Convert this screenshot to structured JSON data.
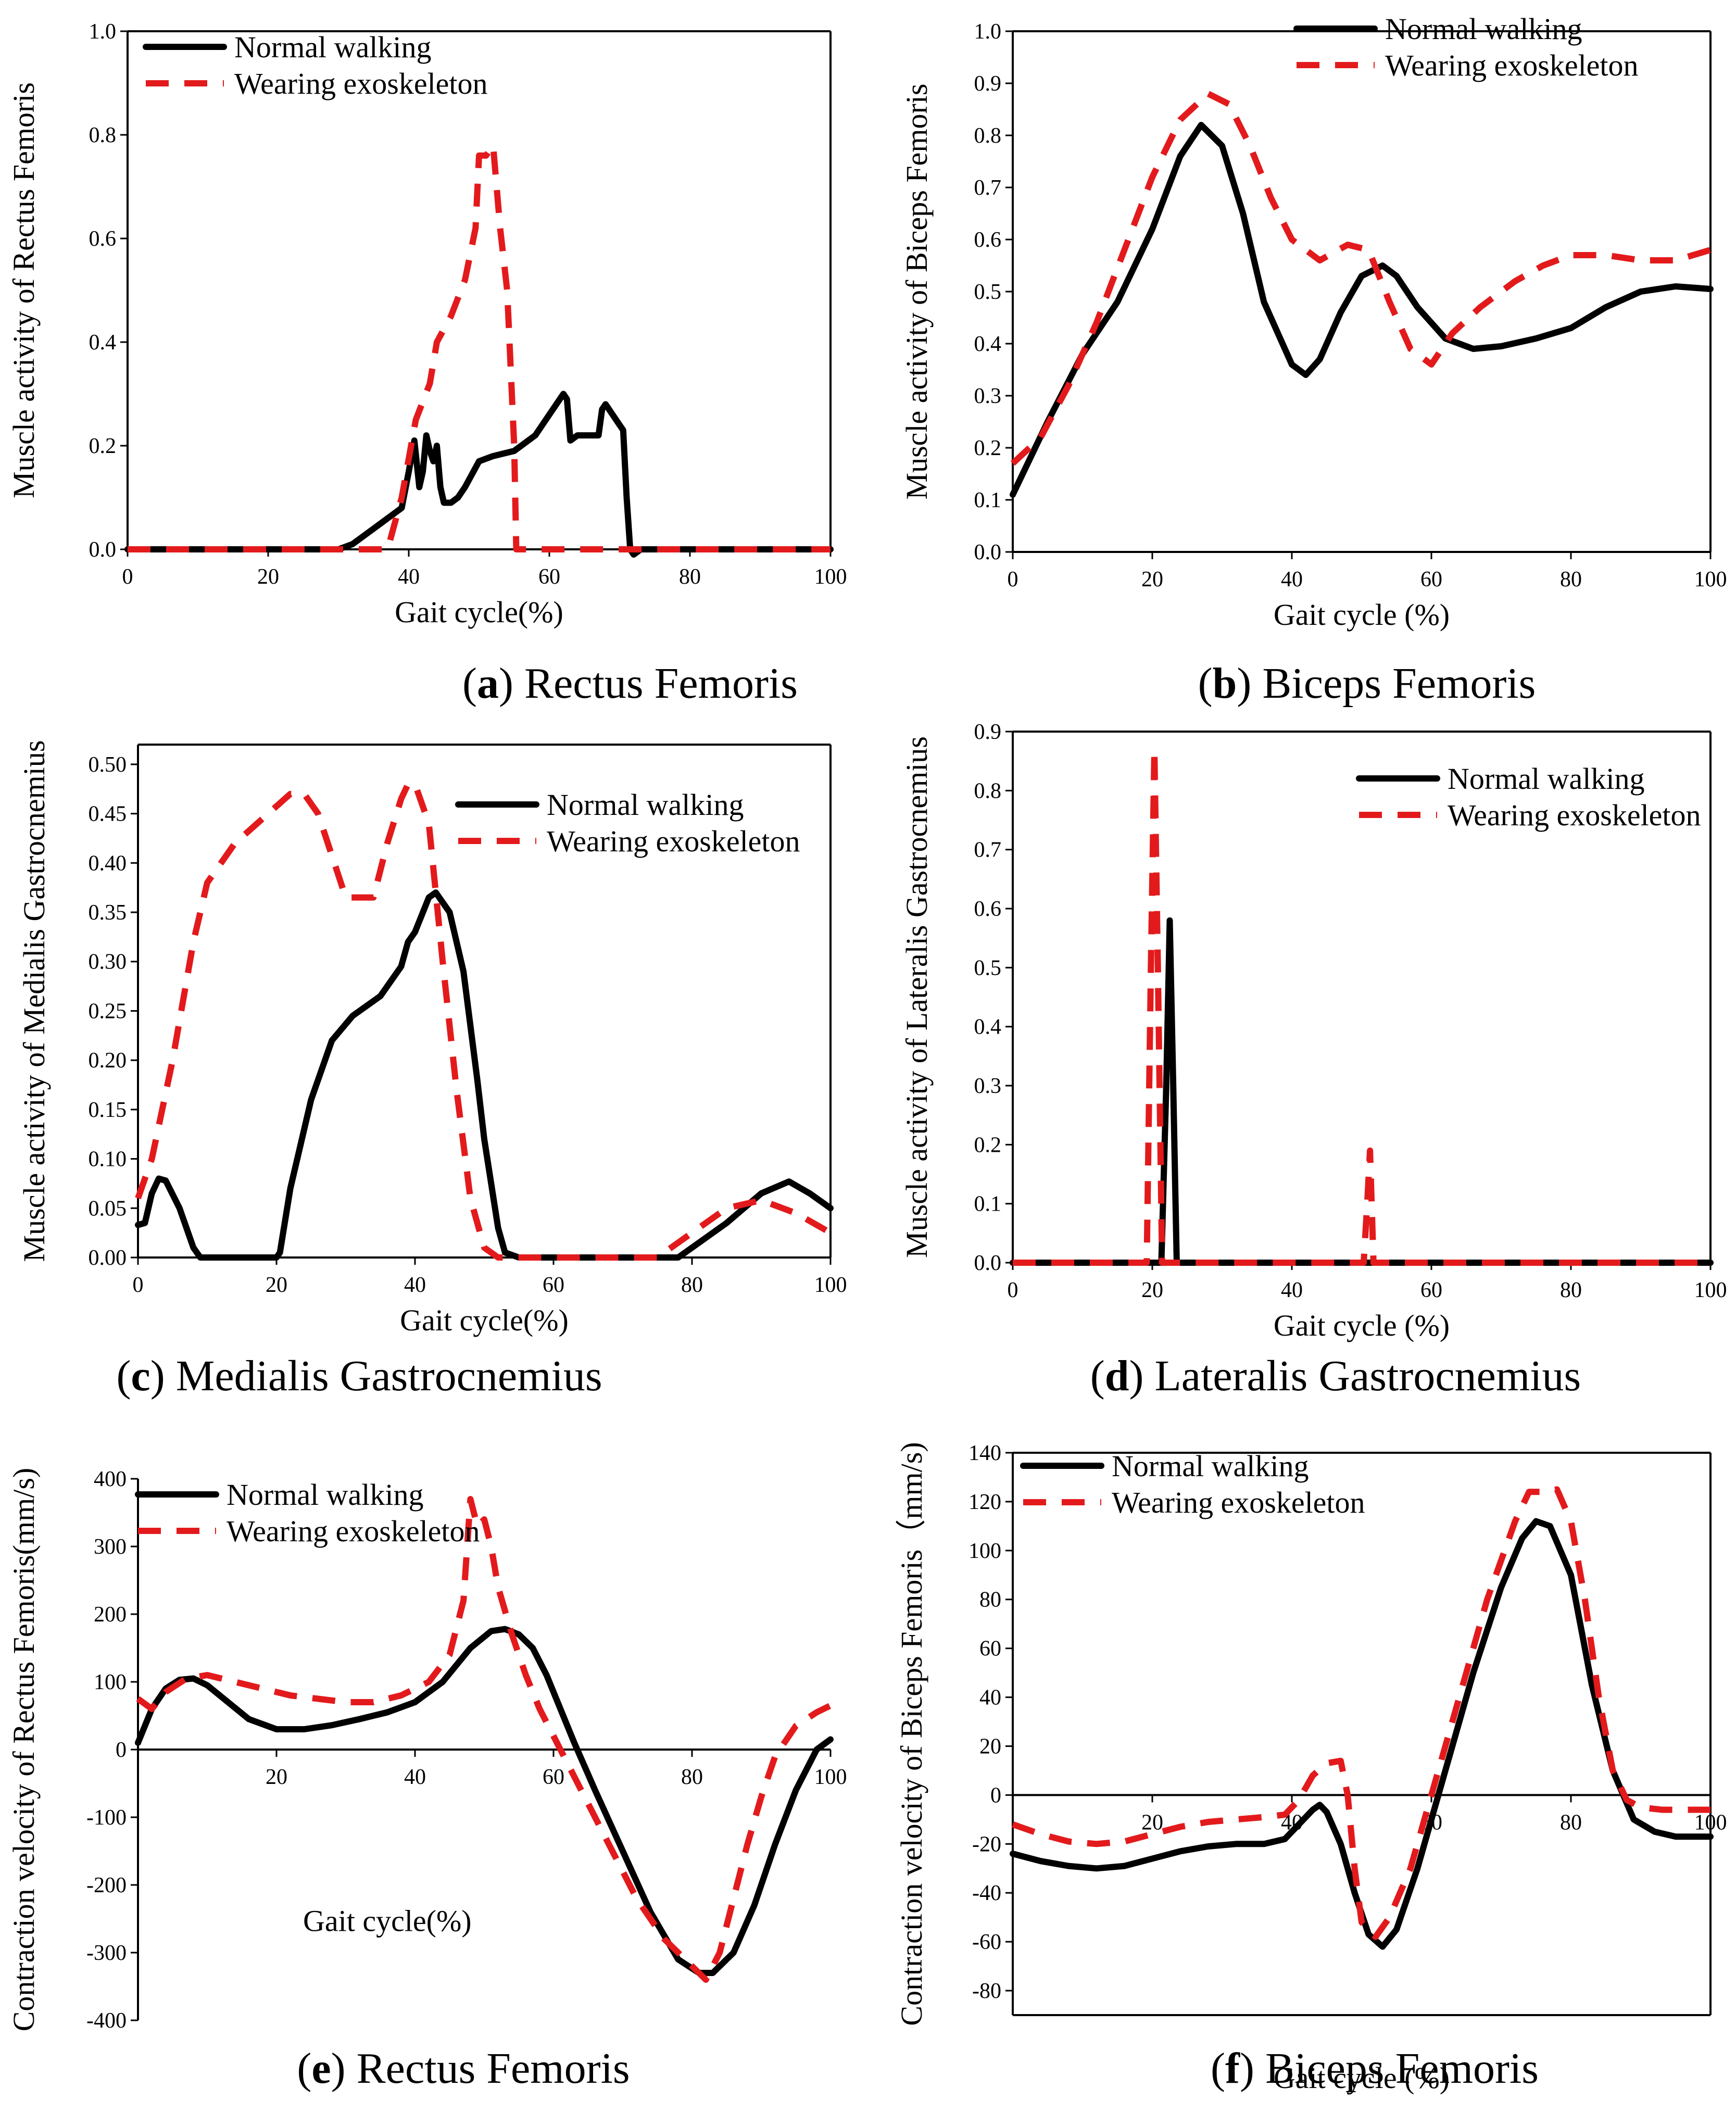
{
  "colors": {
    "normal": "#000000",
    "exo": "#e31a1c"
  },
  "chart_data": [
    {
      "id": "a",
      "type": "line",
      "caption": {
        "letter": "a",
        "text": " Rectus Femoris"
      },
      "xlabel": "Gait cycle(%)",
      "ylabel": "Muscle activity of Rectus Femoris",
      "xlim": [
        0,
        100
      ],
      "ylim": [
        0,
        1.0
      ],
      "xticks": [
        0,
        20,
        40,
        60,
        80,
        100
      ],
      "yticks": [
        0.0,
        0.2,
        0.4,
        0.6,
        0.8,
        1.0
      ],
      "ytick_labels": [
        "0.0",
        "0.2",
        "0.4",
        "0.6",
        "0.8",
        "1.0"
      ],
      "legend": {
        "position": "top-left",
        "normal": "Normal walking",
        "exo": "Wearing exoskeleton"
      },
      "series": [
        {
          "name": "Normal walking",
          "style": "solid",
          "x": [
            0,
            30,
            32,
            34,
            36,
            38,
            39,
            40,
            40.8,
            41.5,
            42,
            42.5,
            43,
            43.5,
            44,
            44.5,
            45,
            46,
            47,
            48,
            50,
            52,
            55,
            58,
            60,
            61,
            62,
            62.5,
            63,
            64,
            65,
            66,
            67,
            67.5,
            68,
            69,
            70,
            70.5,
            71,
            71.5,
            72,
            73,
            75,
            100
          ],
          "y": [
            0,
            0,
            0.01,
            0.03,
            0.05,
            0.07,
            0.08,
            0.15,
            0.21,
            0.12,
            0.15,
            0.22,
            0.19,
            0.17,
            0.2,
            0.12,
            0.09,
            0.09,
            0.1,
            0.12,
            0.17,
            0.18,
            0.19,
            0.22,
            0.26,
            0.28,
            0.3,
            0.29,
            0.21,
            0.22,
            0.22,
            0.22,
            0.22,
            0.27,
            0.28,
            0.26,
            0.24,
            0.23,
            0.1,
            0.0,
            -0.01,
            0.0,
            0.0,
            0.0
          ]
        },
        {
          "name": "Wearing exoskeleton",
          "style": "dashed",
          "x": [
            0,
            37,
            39,
            41,
            43,
            44,
            46,
            48,
            49.5,
            50,
            51,
            52,
            53,
            54,
            55,
            55.3,
            60,
            72,
            100
          ],
          "y": [
            0,
            0,
            0.1,
            0.25,
            0.32,
            0.4,
            0.45,
            0.52,
            0.62,
            0.76,
            0.76,
            0.78,
            0.62,
            0.5,
            0.2,
            0,
            0,
            0,
            0
          ]
        }
      ]
    },
    {
      "id": "b",
      "type": "line",
      "caption": {
        "letter": "b",
        "text": " Biceps Femoris"
      },
      "xlabel": "Gait cycle (%)",
      "ylabel": "Muscle activity of Biceps Femoris",
      "xlim": [
        0,
        100
      ],
      "ylim": [
        0,
        1.0
      ],
      "xticks": [
        0,
        20,
        40,
        60,
        80,
        100
      ],
      "yticks": [
        0.0,
        0.1,
        0.2,
        0.3,
        0.4,
        0.5,
        0.6,
        0.7,
        0.8,
        0.9,
        1.0
      ],
      "ytick_labels": [
        "0.0",
        "0.1",
        "0.2",
        "0.3",
        "0.4",
        "0.5",
        "0.6",
        "0.7",
        "0.8",
        "0.9",
        "1.0"
      ],
      "legend": {
        "position": "top-right",
        "normal": "Normal walking",
        "exo": "Wearing exoskeleton"
      },
      "series": [
        {
          "name": "Normal walking",
          "style": "solid",
          "x": [
            0,
            5,
            10,
            15,
            20,
            24,
            27,
            30,
            33,
            36,
            40,
            42,
            44,
            47,
            50,
            53,
            55,
            58,
            62,
            66,
            70,
            75,
            80,
            85,
            90,
            95,
            100
          ],
          "y": [
            0.11,
            0.25,
            0.38,
            0.48,
            0.62,
            0.76,
            0.82,
            0.78,
            0.65,
            0.48,
            0.36,
            0.34,
            0.37,
            0.46,
            0.53,
            0.55,
            0.53,
            0.47,
            0.41,
            0.39,
            0.395,
            0.41,
            0.43,
            0.47,
            0.5,
            0.51,
            0.505
          ]
        },
        {
          "name": "Wearing exoskeleton",
          "style": "dashed",
          "x": [
            0,
            4,
            8,
            12,
            16,
            20,
            24,
            28,
            31,
            34,
            37,
            40,
            44,
            48,
            51,
            54,
            57,
            60,
            63,
            67,
            72,
            76,
            80,
            85,
            90,
            95,
            100
          ],
          "y": [
            0.17,
            0.22,
            0.32,
            0.44,
            0.58,
            0.72,
            0.83,
            0.88,
            0.86,
            0.78,
            0.68,
            0.6,
            0.56,
            0.59,
            0.58,
            0.48,
            0.39,
            0.36,
            0.42,
            0.47,
            0.52,
            0.55,
            0.57,
            0.57,
            0.56,
            0.56,
            0.58
          ]
        }
      ]
    },
    {
      "id": "c",
      "type": "line",
      "caption": {
        "letter": "c",
        "text": " Medialis Gastrocnemius"
      },
      "xlabel": "Gait cycle(%)",
      "ylabel": "Muscle activity of Medialis Gastrocnemius",
      "xlim": [
        0,
        100
      ],
      "ylim": [
        0,
        0.52
      ],
      "xticks": [
        0,
        20,
        40,
        60,
        80,
        100
      ],
      "yticks": [
        0.0,
        0.05,
        0.1,
        0.15,
        0.2,
        0.25,
        0.3,
        0.35,
        0.4,
        0.45,
        0.5
      ],
      "ytick_labels": [
        "0.00",
        "0.05",
        "0.10",
        "0.15",
        "0.20",
        "0.25",
        "0.30",
        "0.35",
        "0.40",
        "0.45",
        "0.50"
      ],
      "legend": {
        "position": "top-right",
        "normal": "Normal walking",
        "exo": "Wearing exoskeleton"
      },
      "series": [
        {
          "name": "Normal walking",
          "style": "solid",
          "x": [
            0,
            1,
            2,
            3,
            4,
            6,
            8,
            9,
            10,
            15,
            20,
            20.5,
            22,
            25,
            28,
            31,
            35,
            38,
            39,
            40,
            42,
            43,
            45,
            47,
            49,
            50,
            52,
            53,
            55,
            60,
            70,
            78,
            80,
            85,
            90,
            94,
            97,
            100
          ],
          "y": [
            0.033,
            0.035,
            0.065,
            0.08,
            0.078,
            0.05,
            0.01,
            0,
            0,
            0,
            0,
            0.005,
            0.07,
            0.16,
            0.22,
            0.245,
            0.265,
            0.295,
            0.32,
            0.33,
            0.365,
            0.37,
            0.35,
            0.29,
            0.18,
            0.12,
            0.03,
            0.005,
            0,
            0,
            0,
            0,
            0.01,
            0.035,
            0.065,
            0.077,
            0.065,
            0.05
          ]
        },
        {
          "name": "Wearing exoskeleton",
          "style": "dashed",
          "x": [
            0,
            2,
            5,
            8,
            10,
            14,
            18,
            22,
            24,
            26,
            30,
            34,
            36,
            38,
            39,
            40,
            42,
            44,
            46,
            48,
            50,
            52,
            55,
            60,
            70,
            75,
            80,
            85,
            90,
            95,
            100
          ],
          "y": [
            0.06,
            0.1,
            0.2,
            0.32,
            0.38,
            0.42,
            0.445,
            0.47,
            0.47,
            0.45,
            0.365,
            0.365,
            0.42,
            0.465,
            0.48,
            0.48,
            0.44,
            0.3,
            0.17,
            0.06,
            0.01,
            0,
            0,
            0,
            0,
            0,
            0.025,
            0.05,
            0.058,
            0.045,
            0.025
          ]
        }
      ]
    },
    {
      "id": "d",
      "type": "line",
      "caption": {
        "letter": "d",
        "text": " Lateralis Gastrocnemius"
      },
      "xlabel": "Gait cycle (%)",
      "ylabel": "Muscle activity of Lateralis Gastrocnemius",
      "xlim": [
        0,
        100
      ],
      "ylim": [
        0,
        0.9
      ],
      "xticks": [
        0,
        20,
        40,
        60,
        80,
        100
      ],
      "yticks": [
        0.0,
        0.1,
        0.2,
        0.3,
        0.4,
        0.5,
        0.6,
        0.7,
        0.8,
        0.9
      ],
      "ytick_labels": [
        "0.0",
        "0.1",
        "0.2",
        "0.3",
        "0.4",
        "0.5",
        "0.6",
        "0.7",
        "0.8",
        "0.9"
      ],
      "legend": {
        "position": "top-right",
        "normal": "Normal walking",
        "exo": "Wearing exoskeleton"
      },
      "series": [
        {
          "name": "Normal walking",
          "style": "solid",
          "x": [
            0,
            21.3,
            22,
            22.5,
            23,
            23.5,
            100
          ],
          "y": [
            0,
            0,
            0.3,
            0.58,
            0.3,
            0,
            0
          ]
        },
        {
          "name": "Wearing exoskeleton",
          "style": "dashed",
          "x": [
            0,
            19.2,
            19.8,
            20.3,
            20.8,
            21.4,
            50.3,
            50.8,
            51.2,
            51.7,
            100
          ],
          "y": [
            0,
            0,
            0.5,
            0.87,
            0.5,
            0,
            0,
            0.1,
            0.19,
            0,
            0
          ]
        }
      ]
    },
    {
      "id": "e",
      "type": "line",
      "caption": {
        "letter": "e",
        "text": " Rectus Femoris"
      },
      "xlabel": "Gait cycle(%)",
      "ylabel": "Contraction velocity of Rectus Femoris(mm/s)",
      "xlim": [
        0,
        100
      ],
      "ylim": [
        -400,
        400
      ],
      "xticks": [
        20,
        40,
        60,
        80,
        100
      ],
      "yticks": [
        -400,
        -300,
        -200,
        -100,
        0,
        100,
        200,
        300,
        400
      ],
      "ytick_labels": [
        "-400",
        "-300",
        "-200",
        "-100",
        "0",
        "100",
        "200",
        "300",
        "400"
      ],
      "legend": {
        "position": "top-left",
        "normal": "Normal walking",
        "exo": "Wearing exoskeleton"
      },
      "series": [
        {
          "name": "Normal walking",
          "style": "solid",
          "x": [
            0,
            2,
            4,
            6,
            8,
            10,
            13,
            16,
            20,
            24,
            28,
            32,
            36,
            40,
            44,
            48,
            51,
            53,
            55,
            57,
            59,
            61,
            63,
            66,
            70,
            74,
            78,
            81,
            83,
            86,
            89,
            92,
            95,
            98,
            100
          ],
          "y": [
            10,
            60,
            90,
            103,
            105,
            95,
            70,
            45,
            30,
            30,
            36,
            45,
            55,
            70,
            100,
            150,
            175,
            178,
            170,
            150,
            110,
            60,
            10,
            -60,
            -150,
            -240,
            -310,
            -330,
            -330,
            -300,
            -230,
            -140,
            -60,
            0,
            15
          ]
        },
        {
          "name": "Wearing exoskeleton",
          "style": "dashed",
          "x": [
            0,
            2,
            4,
            7,
            10,
            14,
            18,
            22,
            26,
            30,
            34,
            38,
            42,
            45,
            47,
            48,
            49,
            50,
            51,
            52,
            54,
            56,
            58,
            60,
            64,
            68,
            72,
            76,
            80,
            82,
            84,
            86,
            88,
            90,
            92,
            95,
            98,
            100
          ],
          "y": [
            75,
            60,
            85,
            105,
            110,
            100,
            90,
            80,
            75,
            70,
            70,
            80,
            100,
            140,
            220,
            370,
            330,
            340,
            300,
            240,
            170,
            110,
            60,
            20,
            -60,
            -140,
            -220,
            -280,
            -320,
            -340,
            -300,
            -220,
            -140,
            -70,
            -10,
            35,
            55,
            65
          ]
        }
      ]
    },
    {
      "id": "f",
      "type": "line",
      "caption": {
        "letter": "f",
        "text": " Biceps Femoris"
      },
      "xlabel": "Gait cycle (%)",
      "ylabel": "Contraction velocity of Biceps Femoris（mm/s)",
      "xlim": [
        0,
        100
      ],
      "ylim": [
        -90,
        140
      ],
      "xticks": [
        20,
        40,
        60,
        80,
        100
      ],
      "yticks": [
        -80,
        -60,
        -40,
        -20,
        0,
        20,
        40,
        60,
        80,
        100,
        120,
        140
      ],
      "ytick_labels": [
        "-80",
        "-60",
        "-40",
        "-20",
        "0",
        "20",
        "40",
        "60",
        "80",
        "100",
        "120",
        "140"
      ],
      "legend": {
        "position": "top-left",
        "normal": "Normal walking",
        "exo": "Wearing exoskeleton"
      },
      "series": [
        {
          "name": "Normal walking",
          "style": "solid",
          "x": [
            0,
            4,
            8,
            12,
            16,
            20,
            24,
            28,
            32,
            36,
            39,
            41,
            43,
            44,
            45,
            47,
            49,
            51,
            53,
            55,
            58,
            62,
            66,
            70,
            73,
            75,
            77,
            80,
            83,
            86,
            89,
            92,
            95,
            100
          ],
          "y": [
            -24,
            -27,
            -29,
            -30,
            -29,
            -26,
            -23,
            -21,
            -20,
            -20,
            -18,
            -12,
            -6,
            -4,
            -7,
            -20,
            -40,
            -57,
            -62,
            -55,
            -30,
            10,
            50,
            85,
            105,
            112,
            110,
            90,
            45,
            10,
            -10,
            -15,
            -17,
            -17
          ]
        },
        {
          "name": "Wearing exoskeleton",
          "style": "dashed",
          "x": [
            0,
            4,
            8,
            12,
            16,
            20,
            24,
            28,
            32,
            36,
            39,
            41,
            43,
            45,
            47,
            48,
            49,
            50,
            52,
            54,
            57,
            60,
            64,
            68,
            72,
            74,
            76,
            78,
            80,
            82,
            84,
            86,
            88,
            90,
            93,
            96,
            100
          ],
          "y": [
            -12,
            -16,
            -19,
            -20,
            -19,
            -16,
            -13,
            -11,
            -10,
            -9,
            -8,
            -2,
            8,
            13,
            14,
            0,
            -30,
            -52,
            -58,
            -50,
            -30,
            0,
            40,
            80,
            112,
            124,
            124,
            125,
            112,
            80,
            40,
            10,
            -2,
            -5,
            -6,
            -6,
            -6
          ]
        }
      ]
    }
  ]
}
